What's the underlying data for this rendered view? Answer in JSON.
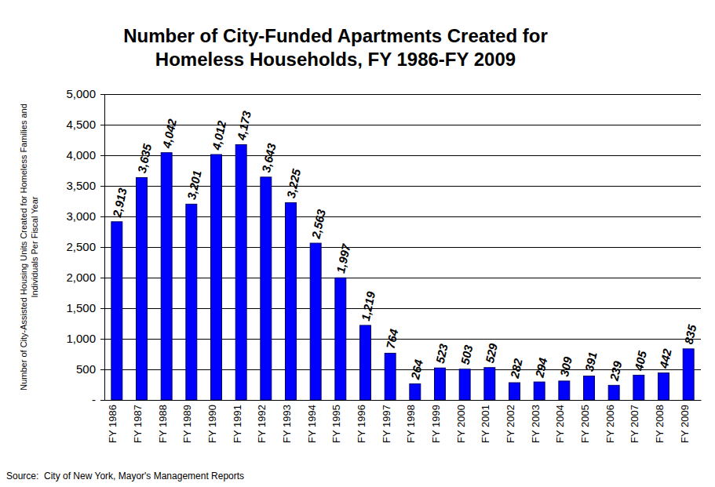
{
  "chart_data": {
    "type": "bar",
    "title": "Number of City-Funded Apartments Created for Homeless Households, FY 1986-FY 2009",
    "y_label": "Number of City-Assisted Housing Units Created for Homeless Families and Individuals Per Fiscal Year",
    "annotations": [
      "Source:  City of New York, Mayor's Management Reports"
    ],
    "categories": [
      "FY 1986",
      "FY 1987",
      "FY 1988",
      "FY 1989",
      "FY 1990",
      "FY 1991",
      "FY 1992",
      "FY 1993",
      "FY 1994",
      "FY 1995",
      "FY 1996",
      "FY 1997",
      "FY 1998",
      "FY 1999",
      "FY 2000",
      "FY 2001",
      "FY 2002",
      "FY 2003",
      "FY 2004",
      "FY 2005",
      "FY 2006",
      "FY 2007",
      "FY 2008",
      "FY 2009"
    ],
    "values": [
      2913,
      3635,
      4042,
      3201,
      4012,
      4173,
      3643,
      3225,
      2563,
      1997,
      1219,
      764,
      264,
      523,
      503,
      529,
      282,
      294,
      309,
      391,
      239,
      405,
      442,
      835
    ],
    "value_labels": [
      "2,913",
      "3,635",
      "4,042",
      "3,201",
      "4,012",
      "4,173",
      "3,643",
      "3,225",
      "2,563",
      "1,997",
      "1,219",
      "764",
      "264",
      "523",
      "503",
      "529",
      "282",
      "294",
      "309",
      "391",
      "239",
      "405",
      "442",
      "835"
    ],
    "color": "#0000ff",
    "ylim": [
      0,
      5000
    ],
    "yticks": [
      {
        "value": 0,
        "label": "-"
      },
      500,
      {
        "value": 1000,
        "label": "1,000"
      },
      {
        "value": 1500,
        "label": "1,500"
      },
      {
        "value": 2000,
        "label": "2,000"
      },
      {
        "value": 2500,
        "label": "2,500"
      },
      {
        "value": 3000,
        "label": "3,000"
      },
      {
        "value": 3500,
        "label": "3,500"
      },
      {
        "value": 4000,
        "label": "4,000"
      },
      {
        "value": 4500,
        "label": "4,500"
      },
      {
        "value": 5000,
        "label": "5,000"
      }
    ],
    "grid": true,
    "data_labels": true
  }
}
